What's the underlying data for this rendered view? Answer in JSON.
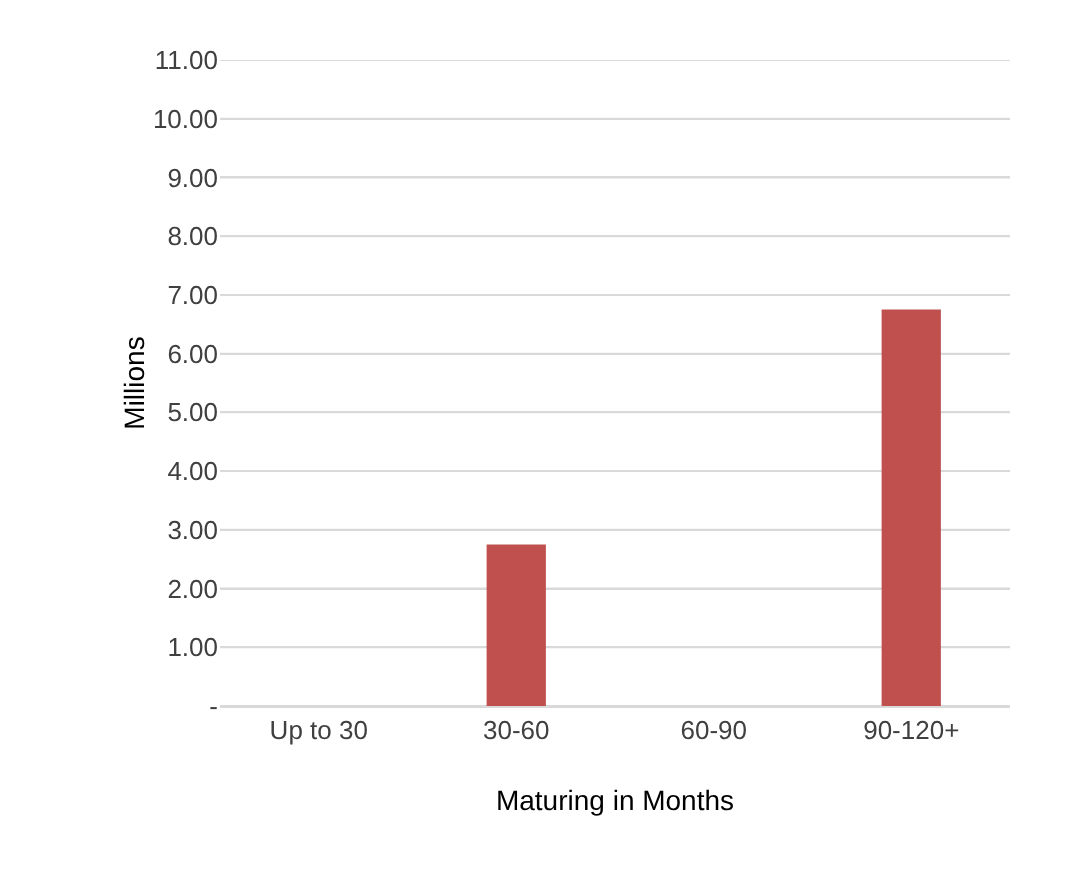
{
  "chart_data": {
    "type": "bar",
    "xlabel": "Maturing in Months",
    "ylabel": "Millions",
    "categories": [
      "Up to 30",
      "30-60",
      "60-90",
      "90-120+"
    ],
    "values": [
      0,
      2.75,
      0,
      6.75
    ],
    "color": "#c0504d",
    "ylim": [
      0,
      11
    ],
    "yticks": [
      {
        "value": 0,
        "label": "-"
      },
      {
        "value": 1,
        "label": "1.00"
      },
      {
        "value": 2,
        "label": "2.00"
      },
      {
        "value": 3,
        "label": "3.00"
      },
      {
        "value": 4,
        "label": "4.00"
      },
      {
        "value": 5,
        "label": "5.00"
      },
      {
        "value": 6,
        "label": "6.00"
      },
      {
        "value": 7,
        "label": "7.00"
      },
      {
        "value": 8,
        "label": "8.00"
      },
      {
        "value": 9,
        "label": "9.00"
      },
      {
        "value": 10,
        "label": "10.00"
      },
      {
        "value": 11,
        "label": "11.00"
      }
    ],
    "grid": "y"
  }
}
